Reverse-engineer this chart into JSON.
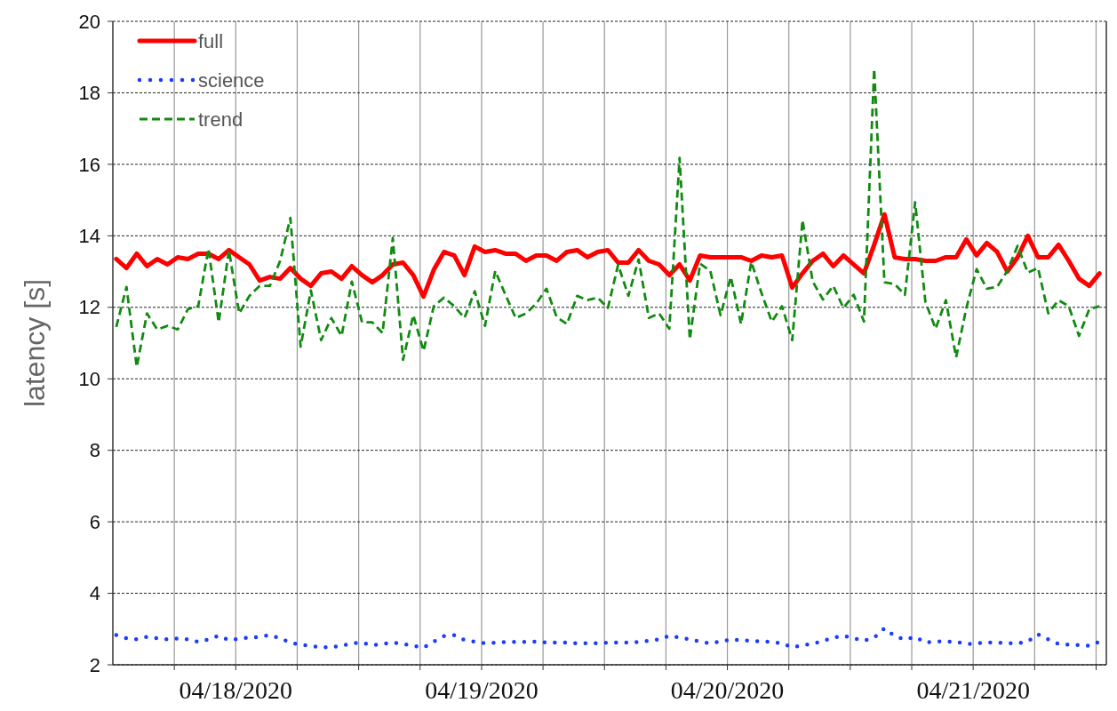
{
  "chart_data": {
    "type": "line",
    "ylabel": "latency [s]",
    "x": [
      "2020-04-17T12:20",
      "2020-04-17T13:20",
      "2020-04-17T14:20",
      "2020-04-17T15:20",
      "2020-04-17T16:20",
      "2020-04-17T17:20",
      "2020-04-17T18:20",
      "2020-04-17T19:20",
      "2020-04-17T20:20",
      "2020-04-17T21:20",
      "2020-04-17T22:20",
      "2020-04-17T23:20",
      "2020-04-18T00:20",
      "2020-04-18T01:20",
      "2020-04-18T02:20",
      "2020-04-18T03:20",
      "2020-04-18T04:20",
      "2020-04-18T05:20",
      "2020-04-18T06:20",
      "2020-04-18T07:20",
      "2020-04-18T08:20",
      "2020-04-18T09:20",
      "2020-04-18T10:20",
      "2020-04-18T11:20",
      "2020-04-18T12:20",
      "2020-04-18T13:20",
      "2020-04-18T14:20",
      "2020-04-18T15:20",
      "2020-04-18T16:20",
      "2020-04-18T17:20",
      "2020-04-18T18:20",
      "2020-04-18T19:20",
      "2020-04-18T20:20",
      "2020-04-18T21:20",
      "2020-04-18T22:20",
      "2020-04-18T23:20",
      "2020-04-19T00:20",
      "2020-04-19T01:20",
      "2020-04-19T02:20",
      "2020-04-19T03:20",
      "2020-04-19T04:20",
      "2020-04-19T05:20",
      "2020-04-19T06:20",
      "2020-04-19T07:20",
      "2020-04-19T08:20",
      "2020-04-19T09:20",
      "2020-04-19T10:20",
      "2020-04-19T11:20",
      "2020-04-19T12:20",
      "2020-04-19T13:20",
      "2020-04-19T14:20",
      "2020-04-19T15:20",
      "2020-04-19T16:20",
      "2020-04-19T17:20",
      "2020-04-19T18:20",
      "2020-04-19T19:20",
      "2020-04-19T20:20",
      "2020-04-19T21:20",
      "2020-04-19T22:20",
      "2020-04-19T23:20",
      "2020-04-20T00:20",
      "2020-04-20T01:20",
      "2020-04-20T02:20",
      "2020-04-20T03:20",
      "2020-04-20T04:20",
      "2020-04-20T05:20",
      "2020-04-20T06:20",
      "2020-04-20T07:20",
      "2020-04-20T08:20",
      "2020-04-20T09:20",
      "2020-04-20T10:20",
      "2020-04-20T11:20",
      "2020-04-20T12:20",
      "2020-04-20T13:20",
      "2020-04-20T14:20",
      "2020-04-20T15:20",
      "2020-04-20T16:20",
      "2020-04-20T17:20",
      "2020-04-20T18:20",
      "2020-04-20T19:20",
      "2020-04-20T20:20",
      "2020-04-20T21:20",
      "2020-04-20T22:20",
      "2020-04-20T23:20",
      "2020-04-21T00:20",
      "2020-04-21T01:20",
      "2020-04-21T02:20",
      "2020-04-21T03:20",
      "2020-04-21T04:20",
      "2020-04-21T05:20",
      "2020-04-21T06:20",
      "2020-04-21T07:20",
      "2020-04-21T08:20",
      "2020-04-21T09:20",
      "2020-04-21T10:20",
      "2020-04-21T11:20",
      "2020-04-21T12:20"
    ],
    "series": [
      {
        "name": "full",
        "color": "#ff0000",
        "line_style": "solid",
        "values": [
          13.35,
          13.1,
          13.5,
          13.15,
          13.35,
          13.2,
          13.4,
          13.35,
          13.5,
          13.5,
          13.35,
          13.6,
          13.4,
          13.2,
          12.75,
          12.85,
          12.8,
          13.1,
          12.8,
          12.6,
          12.95,
          13.0,
          12.8,
          13.15,
          12.9,
          12.7,
          12.9,
          13.2,
          13.25,
          12.9,
          12.3,
          13.05,
          13.55,
          13.45,
          12.9,
          13.7,
          13.55,
          13.6,
          13.5,
          13.5,
          13.3,
          13.45,
          13.45,
          13.3,
          13.55,
          13.6,
          13.4,
          13.55,
          13.6,
          13.25,
          13.25,
          13.6,
          13.3,
          13.2,
          12.9,
          13.2,
          12.75,
          13.45,
          13.4,
          13.4,
          13.4,
          13.4,
          13.3,
          13.45,
          13.4,
          13.45,
          12.55,
          12.95,
          13.3,
          13.5,
          13.15,
          13.45,
          13.2,
          12.95,
          13.75,
          14.6,
          13.4,
          13.35,
          13.35,
          13.3,
          13.3,
          13.4,
          13.4,
          13.9,
          13.45,
          13.8,
          13.55,
          13.0,
          13.4,
          14.0,
          13.4,
          13.4,
          13.75,
          13.3,
          12.8,
          12.6,
          12.95
        ]
      },
      {
        "name": "science",
        "color": "#1a3cff",
        "line_style": "dotted",
        "values": [
          2.83,
          2.74,
          2.71,
          2.78,
          2.74,
          2.71,
          2.74,
          2.71,
          2.64,
          2.71,
          2.81,
          2.69,
          2.73,
          2.76,
          2.78,
          2.83,
          2.74,
          2.62,
          2.56,
          2.53,
          2.49,
          2.49,
          2.53,
          2.6,
          2.62,
          2.55,
          2.58,
          2.62,
          2.58,
          2.53,
          2.48,
          2.65,
          2.8,
          2.83,
          2.69,
          2.65,
          2.6,
          2.62,
          2.64,
          2.64,
          2.64,
          2.65,
          2.62,
          2.62,
          2.62,
          2.6,
          2.6,
          2.6,
          2.62,
          2.62,
          2.62,
          2.64,
          2.67,
          2.71,
          2.81,
          2.76,
          2.71,
          2.65,
          2.6,
          2.65,
          2.71,
          2.69,
          2.67,
          2.65,
          2.64,
          2.6,
          2.49,
          2.55,
          2.58,
          2.67,
          2.76,
          2.81,
          2.74,
          2.67,
          2.76,
          3.02,
          2.8,
          2.71,
          2.78,
          2.62,
          2.65,
          2.65,
          2.64,
          2.58,
          2.6,
          2.62,
          2.62,
          2.6,
          2.6,
          2.65,
          2.85,
          2.71,
          2.58,
          2.56,
          2.55,
          2.53,
          2.65
        ]
      },
      {
        "name": "trend",
        "color": "#118a11",
        "line_style": "dashed",
        "values": [
          11.45,
          12.57,
          10.33,
          11.83,
          11.38,
          11.48,
          11.38,
          11.95,
          12.03,
          13.64,
          11.58,
          13.6,
          11.83,
          12.32,
          12.6,
          12.6,
          13.3,
          14.5,
          10.9,
          12.47,
          11.08,
          11.7,
          11.2,
          12.72,
          11.58,
          11.58,
          11.28,
          13.94,
          10.53,
          11.78,
          10.78,
          12.03,
          12.27,
          12.03,
          11.7,
          12.45,
          11.48,
          13.02,
          12.35,
          11.7,
          11.83,
          12.1,
          12.52,
          11.73,
          11.53,
          12.32,
          12.2,
          12.27,
          11.98,
          13.19,
          12.32,
          13.34,
          11.7,
          11.83,
          11.4,
          16.18,
          11.1,
          13.22,
          13.02,
          11.78,
          12.85,
          11.53,
          13.27,
          12.4,
          11.6,
          12.03,
          11.08,
          14.44,
          12.72,
          12.22,
          12.6,
          11.98,
          12.35,
          11.6,
          18.67,
          12.7,
          12.65,
          12.35,
          14.94,
          12.15,
          11.4,
          12.2,
          10.6,
          11.98,
          13.07,
          12.52,
          12.57,
          13.02,
          13.72,
          12.97,
          13.1,
          11.83,
          12.2,
          12.03,
          11.2,
          11.95,
          12.03
        ]
      }
    ],
    "xlim": [
      "2020-04-17T12:00",
      "2020-04-21T13:00"
    ],
    "xticks": [
      {
        "value": "2020-04-17T18:00",
        "label": null
      },
      {
        "value": "2020-04-18T00:00",
        "label": "04/18/2020"
      },
      {
        "value": "2020-04-18T06:00",
        "label": null
      },
      {
        "value": "2020-04-18T12:00",
        "label": null
      },
      {
        "value": "2020-04-18T18:00",
        "label": null
      },
      {
        "value": "2020-04-19T00:00",
        "label": "04/19/2020"
      },
      {
        "value": "2020-04-19T06:00",
        "label": null
      },
      {
        "value": "2020-04-19T12:00",
        "label": null
      },
      {
        "value": "2020-04-19T18:00",
        "label": null
      },
      {
        "value": "2020-04-20T00:00",
        "label": "04/20/2020"
      },
      {
        "value": "2020-04-20T06:00",
        "label": null
      },
      {
        "value": "2020-04-20T12:00",
        "label": null
      },
      {
        "value": "2020-04-20T18:00",
        "label": null
      },
      {
        "value": "2020-04-21T00:00",
        "label": "04/21/2020"
      },
      {
        "value": "2020-04-21T06:00",
        "label": null
      },
      {
        "value": "2020-04-21T12:00",
        "label": null
      }
    ],
    "ylim": [
      2,
      20
    ],
    "yticks": [
      2,
      4,
      6,
      8,
      10,
      12,
      14,
      16,
      18,
      20
    ],
    "grid": true,
    "legend": "top left"
  }
}
